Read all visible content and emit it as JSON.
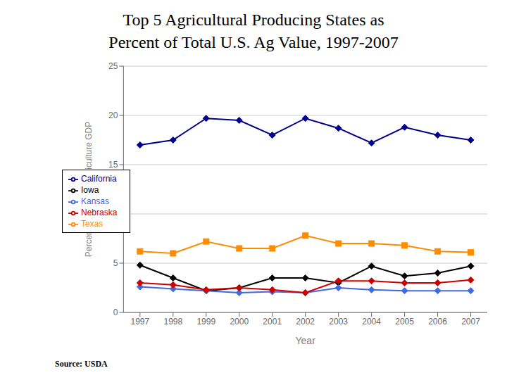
{
  "chart_data": {
    "type": "line",
    "title": "Top 5 Agricultural Producing States as",
    "subtitle": "Percent of Total U.S. Ag Value, 1997-2007",
    "x_label": "Year",
    "y_label": "Percent of US Total Agriculture GDP",
    "x": [
      1997,
      1998,
      1999,
      2000,
      2001,
      2002,
      2003,
      2004,
      2005,
      2006,
      2007
    ],
    "series": [
      {
        "name": "California",
        "color": "#00008B",
        "marker": "diamond",
        "values": [
          17.0,
          17.5,
          19.7,
          19.5,
          18.0,
          19.7,
          18.7,
          17.2,
          18.8,
          18.0,
          17.5
        ]
      },
      {
        "name": "Texas",
        "color": "#FF8C00",
        "marker": "square",
        "values": [
          6.2,
          6.0,
          7.2,
          6.5,
          6.5,
          7.8,
          7.0,
          7.0,
          6.8,
          6.2,
          6.1
        ]
      },
      {
        "name": "Iowa",
        "color": "#000000",
        "marker": "diamond",
        "values": [
          4.8,
          3.5,
          2.2,
          2.5,
          3.5,
          3.5,
          3.0,
          4.7,
          3.7,
          4.0,
          4.7
        ]
      },
      {
        "name": "Kansas",
        "color": "#4169E1",
        "marker": "diamond",
        "values": [
          2.6,
          2.4,
          2.2,
          2.0,
          2.1,
          2.0,
          2.5,
          2.3,
          2.2,
          2.2,
          2.2
        ]
      },
      {
        "name": "Nebraska",
        "color": "#CC0000",
        "marker": "diamond",
        "values": [
          3.0,
          2.8,
          2.3,
          2.5,
          2.3,
          2.0,
          3.2,
          3.2,
          3.0,
          3.0,
          3.3
        ]
      }
    ],
    "xlim": [
      1996.5,
      2007.5
    ],
    "xticks": [
      1997,
      1998,
      1999,
      2000,
      2001,
      2002,
      2003,
      2004,
      2005,
      2006,
      2007
    ],
    "ylim": [
      0,
      25
    ],
    "yticks": [
      0,
      5,
      10,
      15,
      20,
      25
    ],
    "grid": "y",
    "legend": "upper left",
    "annotations": [
      "Source: USDA"
    ]
  }
}
